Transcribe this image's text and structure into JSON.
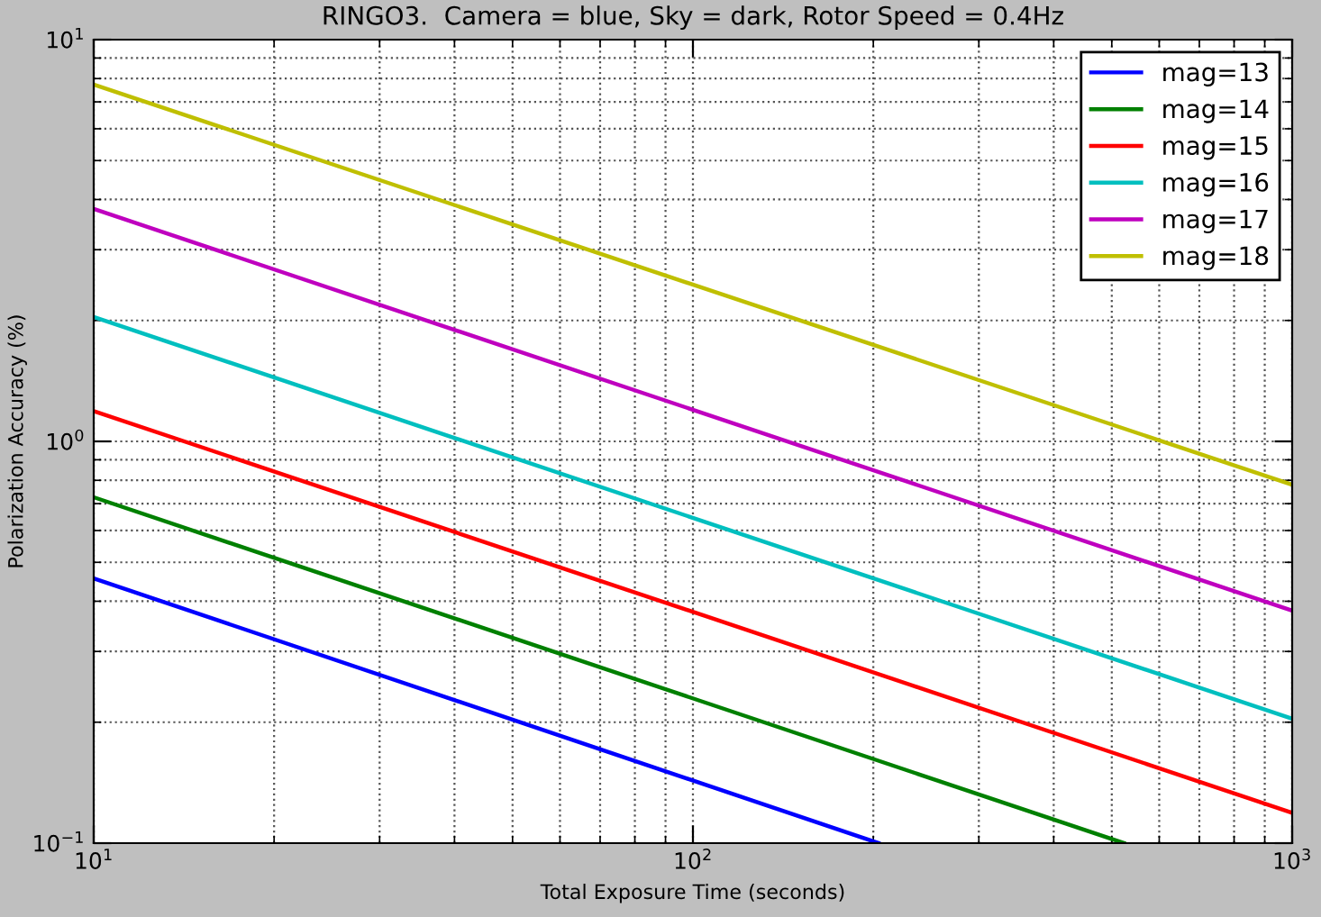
{
  "chart_data": {
    "type": "line",
    "title": "RINGO3.  Camera = blue, Sky = dark, Rotor Speed = 0.4Hz",
    "xlabel": "Total Exposure Time (seconds)",
    "ylabel": "Polarization Accuracy (%)",
    "log": "xy",
    "grid": true,
    "legend": "top right",
    "line_style": "solid",
    "marker": "none",
    "xlim": [
      10,
      1000
    ],
    "ylim": [
      0.1,
      10
    ],
    "xticks": [
      {
        "value": 10,
        "label": "10$^{1}$"
      },
      {
        "value": 100,
        "label": "10$^{2}$"
      },
      {
        "value": 1000,
        "label": "10$^{3}$"
      }
    ],
    "yticks": [
      {
        "value": 0.1,
        "label": "10$^{−1}$"
      },
      {
        "value": 1,
        "label": "10$^{0}$"
      },
      {
        "value": 10,
        "label": "10$^{1}$"
      }
    ],
    "series": [
      {
        "name": "mag=13",
        "color": "#0000ff",
        "x": [
          10,
          204
        ],
        "values": [
          0.456,
          0.1
        ]
      },
      {
        "name": "mag=14",
        "color": "#008000",
        "x": [
          10,
          524
        ],
        "values": [
          0.726,
          0.1
        ]
      },
      {
        "name": "mag=15",
        "color": "#ff0000",
        "x": [
          10,
          1000
        ],
        "values": [
          1.19,
          0.119
        ]
      },
      {
        "name": "mag=16",
        "color": "#00bfbf",
        "x": [
          10,
          1000
        ],
        "values": [
          2.04,
          0.204
        ]
      },
      {
        "name": "mag=17",
        "color": "#bf00bf",
        "x": [
          10,
          1000
        ],
        "values": [
          3.79,
          0.379
        ]
      },
      {
        "name": "mag=18",
        "color": "#bfbf00",
        "x": [
          10,
          1000
        ],
        "values": [
          7.73,
          0.78
        ]
      }
    ]
  }
}
